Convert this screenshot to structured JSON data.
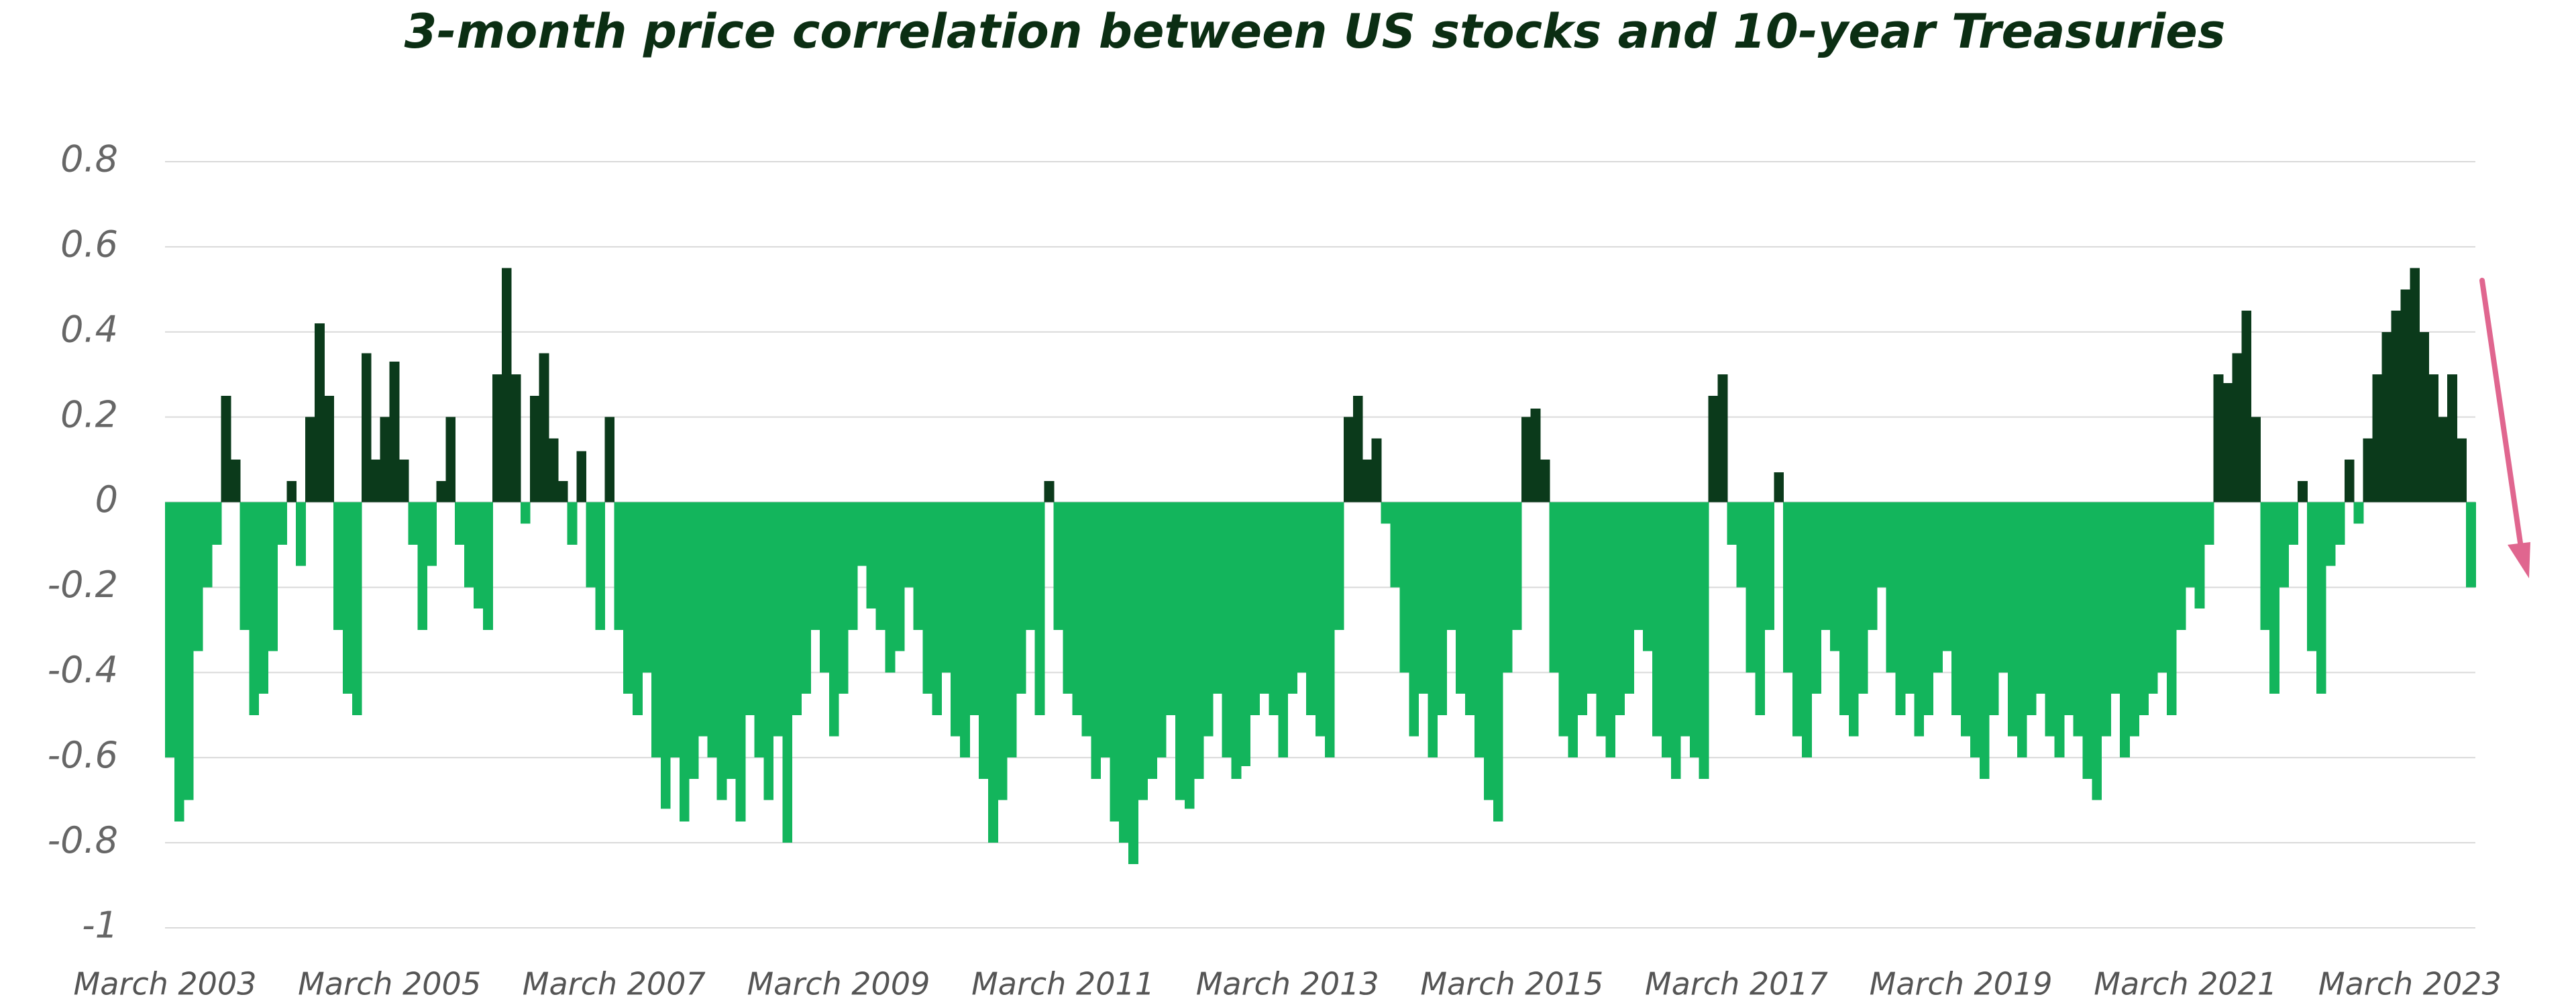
{
  "chart_data": {
    "type": "bar",
    "title": "3-month price correlation between US stocks and 10-year Treasuries",
    "x": [
      "2003-03",
      "2003-04",
      "2003-05",
      "2003-06",
      "2003-07",
      "2003-08",
      "2003-09",
      "2003-10",
      "2003-11",
      "2003-12",
      "2004-01",
      "2004-02",
      "2004-03",
      "2004-04",
      "2004-05",
      "2004-06",
      "2004-07",
      "2004-08",
      "2004-09",
      "2004-10",
      "2004-11",
      "2004-12",
      "2005-01",
      "2005-02",
      "2005-03",
      "2005-04",
      "2005-05",
      "2005-06",
      "2005-07",
      "2005-08",
      "2005-09",
      "2005-10",
      "2005-11",
      "2005-12",
      "2006-01",
      "2006-02",
      "2006-03",
      "2006-04",
      "2006-05",
      "2006-06",
      "2006-07",
      "2006-08",
      "2006-09",
      "2006-10",
      "2006-11",
      "2006-12",
      "2007-01",
      "2007-02",
      "2007-03",
      "2007-04",
      "2007-05",
      "2007-06",
      "2007-07",
      "2007-08",
      "2007-09",
      "2007-10",
      "2007-11",
      "2007-12",
      "2008-01",
      "2008-02",
      "2008-03",
      "2008-04",
      "2008-05",
      "2008-06",
      "2008-07",
      "2008-08",
      "2008-09",
      "2008-10",
      "2008-11",
      "2008-12",
      "2009-01",
      "2009-02",
      "2009-03",
      "2009-04",
      "2009-05",
      "2009-06",
      "2009-07",
      "2009-08",
      "2009-09",
      "2009-10",
      "2009-11",
      "2009-12",
      "2010-01",
      "2010-02",
      "2010-03",
      "2010-04",
      "2010-05",
      "2010-06",
      "2010-07",
      "2010-08",
      "2010-09",
      "2010-10",
      "2010-11",
      "2010-12",
      "2011-01",
      "2011-02",
      "2011-03",
      "2011-04",
      "2011-05",
      "2011-06",
      "2011-07",
      "2011-08",
      "2011-09",
      "2011-10",
      "2011-11",
      "2011-12",
      "2012-01",
      "2012-02",
      "2012-03",
      "2012-04",
      "2012-05",
      "2012-06",
      "2012-07",
      "2012-08",
      "2012-09",
      "2012-10",
      "2012-11",
      "2012-12",
      "2013-01",
      "2013-02",
      "2013-03",
      "2013-04",
      "2013-05",
      "2013-06",
      "2013-07",
      "2013-08",
      "2013-09",
      "2013-10",
      "2013-11",
      "2013-12",
      "2014-01",
      "2014-02",
      "2014-03",
      "2014-04",
      "2014-05",
      "2014-06",
      "2014-07",
      "2014-08",
      "2014-09",
      "2014-10",
      "2014-11",
      "2014-12",
      "2015-01",
      "2015-02",
      "2015-03",
      "2015-04",
      "2015-05",
      "2015-06",
      "2015-07",
      "2015-08",
      "2015-09",
      "2015-10",
      "2015-11",
      "2015-12",
      "2016-01",
      "2016-02",
      "2016-03",
      "2016-04",
      "2016-05",
      "2016-06",
      "2016-07",
      "2016-08",
      "2016-09",
      "2016-10",
      "2016-11",
      "2016-12",
      "2017-01",
      "2017-02",
      "2017-03",
      "2017-04",
      "2017-05",
      "2017-06",
      "2017-07",
      "2017-08",
      "2017-09",
      "2017-10",
      "2017-11",
      "2017-12",
      "2018-01",
      "2018-02",
      "2018-03",
      "2018-04",
      "2018-05",
      "2018-06",
      "2018-07",
      "2018-08",
      "2018-09",
      "2018-10",
      "2018-11",
      "2018-12",
      "2019-01",
      "2019-02",
      "2019-03",
      "2019-04",
      "2019-05",
      "2019-06",
      "2019-07",
      "2019-08",
      "2019-09",
      "2019-10",
      "2019-11",
      "2019-12",
      "2020-01",
      "2020-02",
      "2020-03",
      "2020-04",
      "2020-05",
      "2020-06",
      "2020-07",
      "2020-08",
      "2020-09",
      "2020-10",
      "2020-11",
      "2020-12",
      "2021-01",
      "2021-02",
      "2021-03",
      "2021-04",
      "2021-05",
      "2021-06",
      "2021-07",
      "2021-08",
      "2021-09",
      "2021-10",
      "2021-11",
      "2021-12",
      "2022-01",
      "2022-02",
      "2022-03",
      "2022-04",
      "2022-05",
      "2022-06",
      "2022-07",
      "2022-08",
      "2022-09",
      "2022-10",
      "2022-11",
      "2022-12",
      "2023-01",
      "2023-02",
      "2023-03",
      "2023-04",
      "2023-05",
      "2023-06",
      "2023-07",
      "2023-08",
      "2023-09"
    ],
    "values": [
      -0.6,
      -0.75,
      -0.7,
      -0.35,
      -0.2,
      -0.1,
      0.25,
      0.1,
      -0.3,
      -0.5,
      -0.45,
      -0.35,
      -0.1,
      0.05,
      -0.15,
      0.2,
      0.42,
      0.25,
      -0.3,
      -0.45,
      -0.5,
      0.35,
      0.1,
      0.2,
      0.33,
      0.1,
      -0.1,
      -0.3,
      -0.15,
      0.05,
      0.2,
      -0.1,
      -0.2,
      -0.25,
      -0.3,
      0.3,
      0.55,
      0.3,
      -0.05,
      0.25,
      0.35,
      0.15,
      0.05,
      -0.1,
      0.12,
      -0.2,
      -0.3,
      0.2,
      -0.3,
      -0.45,
      -0.5,
      -0.4,
      -0.6,
      -0.72,
      -0.6,
      -0.75,
      -0.65,
      -0.55,
      -0.6,
      -0.7,
      -0.65,
      -0.75,
      -0.5,
      -0.6,
      -0.7,
      -0.55,
      -0.8,
      -0.5,
      -0.45,
      -0.3,
      -0.4,
      -0.55,
      -0.45,
      -0.3,
      -0.15,
      -0.25,
      -0.3,
      -0.4,
      -0.35,
      -0.2,
      -0.3,
      -0.45,
      -0.5,
      -0.4,
      -0.55,
      -0.6,
      -0.5,
      -0.65,
      -0.8,
      -0.7,
      -0.6,
      -0.45,
      -0.3,
      -0.5,
      0.05,
      -0.3,
      -0.45,
      -0.5,
      -0.55,
      -0.65,
      -0.6,
      -0.75,
      -0.8,
      -0.85,
      -0.7,
      -0.65,
      -0.6,
      -0.5,
      -0.7,
      -0.72,
      -0.65,
      -0.55,
      -0.45,
      -0.6,
      -0.65,
      -0.62,
      -0.5,
      -0.45,
      -0.5,
      -0.6,
      -0.45,
      -0.4,
      -0.5,
      -0.55,
      -0.6,
      -0.3,
      0.2,
      0.25,
      0.1,
      0.15,
      -0.05,
      -0.2,
      -0.4,
      -0.55,
      -0.45,
      -0.6,
      -0.5,
      -0.3,
      -0.45,
      -0.5,
      -0.6,
      -0.7,
      -0.75,
      -0.4,
      -0.3,
      0.2,
      0.22,
      0.1,
      -0.4,
      -0.55,
      -0.6,
      -0.5,
      -0.45,
      -0.55,
      -0.6,
      -0.5,
      -0.45,
      -0.3,
      -0.35,
      -0.55,
      -0.6,
      -0.65,
      -0.55,
      -0.6,
      -0.65,
      0.25,
      0.3,
      -0.1,
      -0.2,
      -0.4,
      -0.5,
      -0.3,
      0.07,
      -0.4,
      -0.55,
      -0.6,
      -0.45,
      -0.3,
      -0.35,
      -0.5,
      -0.55,
      -0.45,
      -0.3,
      -0.2,
      -0.4,
      -0.5,
      -0.45,
      -0.55,
      -0.5,
      -0.4,
      -0.35,
      -0.5,
      -0.55,
      -0.6,
      -0.65,
      -0.5,
      -0.4,
      -0.55,
      -0.6,
      -0.5,
      -0.45,
      -0.55,
      -0.6,
      -0.5,
      -0.55,
      -0.65,
      -0.7,
      -0.55,
      -0.45,
      -0.6,
      -0.55,
      -0.5,
      -0.45,
      -0.4,
      -0.5,
      -0.3,
      -0.2,
      -0.25,
      -0.1,
      0.3,
      0.28,
      0.35,
      0.45,
      0.2,
      -0.3,
      -0.45,
      -0.2,
      -0.1,
      0.05,
      -0.35,
      -0.45,
      -0.15,
      -0.1,
      0.1,
      -0.05,
      0.15,
      0.3,
      0.4,
      0.45,
      0.5,
      0.55,
      0.4,
      0.3,
      0.2,
      0.3,
      0.15,
      -0.2
    ],
    "positive_color": "#0b3a1b",
    "negative_color": "#13b55c",
    "xlim": [
      "2003-03",
      "2023-09"
    ],
    "xticks": [
      {
        "value": "2003-03",
        "label": "March 2003"
      },
      {
        "value": "2005-03",
        "label": "March 2005"
      },
      {
        "value": "2007-03",
        "label": "March 2007"
      },
      {
        "value": "2009-03",
        "label": "March 2009"
      },
      {
        "value": "2011-03",
        "label": "March 2011"
      },
      {
        "value": "2013-03",
        "label": "March 2013"
      },
      {
        "value": "2015-03",
        "label": "March 2015"
      },
      {
        "value": "2017-03",
        "label": "March 2017"
      },
      {
        "value": "2019-03",
        "label": "March 2019"
      },
      {
        "value": "2021-03",
        "label": "March 2021"
      },
      {
        "value": "2023-03",
        "label": "March 2023"
      }
    ],
    "ylim": [
      -1,
      0.8
    ],
    "yticks": [
      0.8,
      0.6,
      0.4,
      0.2,
      0,
      -0.2,
      -0.4,
      -0.6,
      -0.8,
      -1
    ],
    "grid": true
  }
}
